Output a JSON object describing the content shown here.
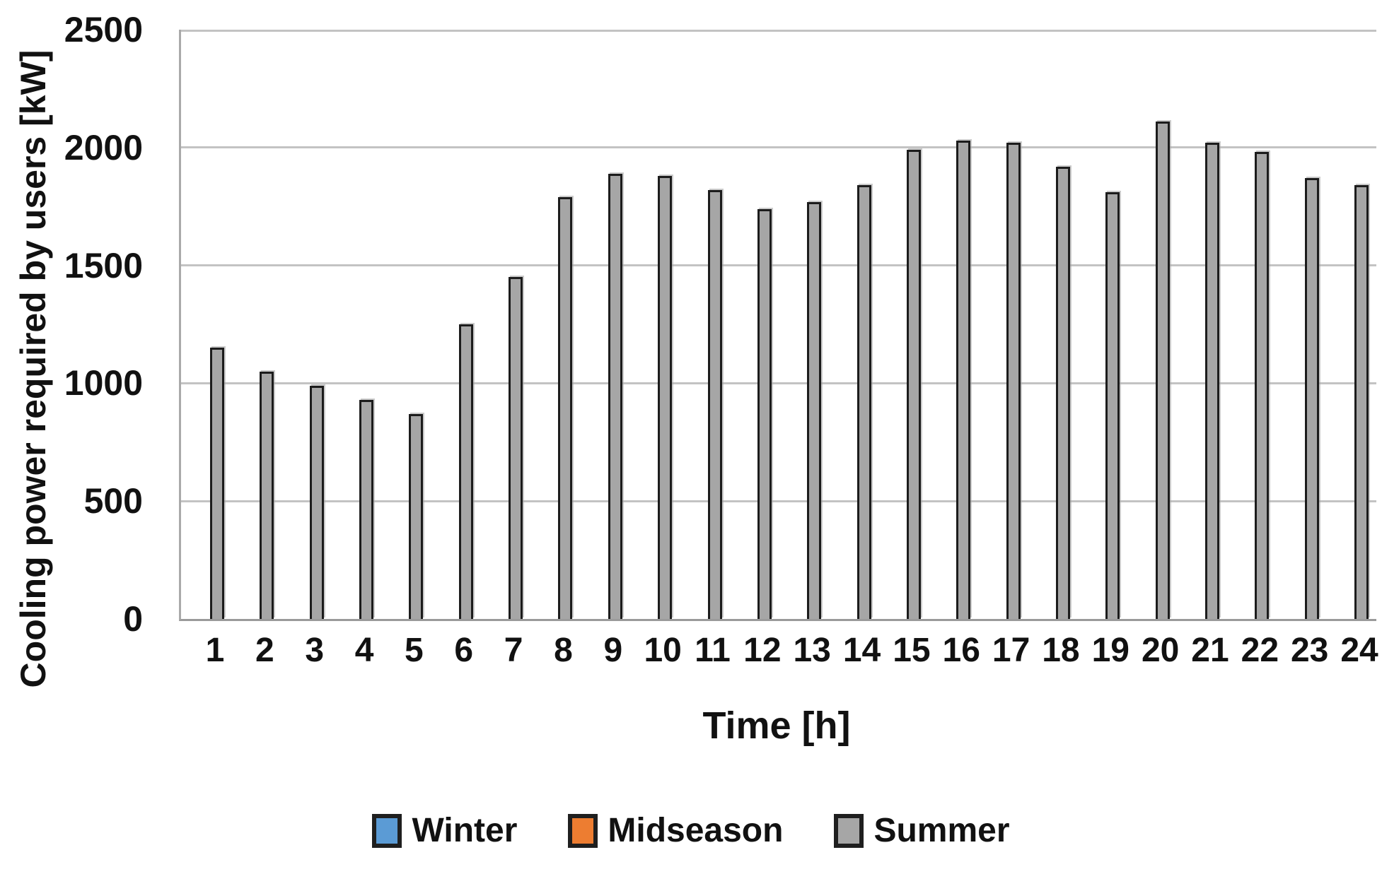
{
  "chart_data": {
    "type": "bar",
    "title": "",
    "xlabel": "Time [h]",
    "ylabel": "Cooling power required by users [kW]",
    "ylim": [
      0,
      2500
    ],
    "yticks": [
      0,
      500,
      1000,
      1500,
      2000,
      2500
    ],
    "grid": true,
    "legend_position": "bottom",
    "categories": [
      "1",
      "2",
      "3",
      "4",
      "5",
      "6",
      "7",
      "8",
      "9",
      "10",
      "11",
      "12",
      "13",
      "14",
      "15",
      "16",
      "17",
      "18",
      "19",
      "20",
      "21",
      "22",
      "23",
      "24"
    ],
    "series": [
      {
        "name": "Winter",
        "color": "#5B9BD5",
        "values": []
      },
      {
        "name": "Midseason",
        "color": "#ED7D31",
        "values": []
      },
      {
        "name": "Summer",
        "color": "#A6A6A6",
        "values": [
          1150,
          1050,
          990,
          930,
          870,
          1250,
          1450,
          1790,
          1890,
          1880,
          1820,
          1740,
          1770,
          1840,
          1990,
          2030,
          2020,
          1920,
          1810,
          2110,
          2020,
          1980,
          1870,
          1840
        ]
      }
    ],
    "legend": {
      "entries": [
        {
          "label": "Winter",
          "color": "#5B9BD5"
        },
        {
          "label": "Midseason",
          "color": "#ED7D31"
        },
        {
          "label": "Summer",
          "color": "#A6A6A6"
        }
      ]
    },
    "colors": {
      "bar_fill": "#A6A6A6",
      "bar_border": "#1c1c1c",
      "gridline": "#c3c3c3",
      "axis_line": "#a0a0a0",
      "text": "#111111"
    }
  }
}
